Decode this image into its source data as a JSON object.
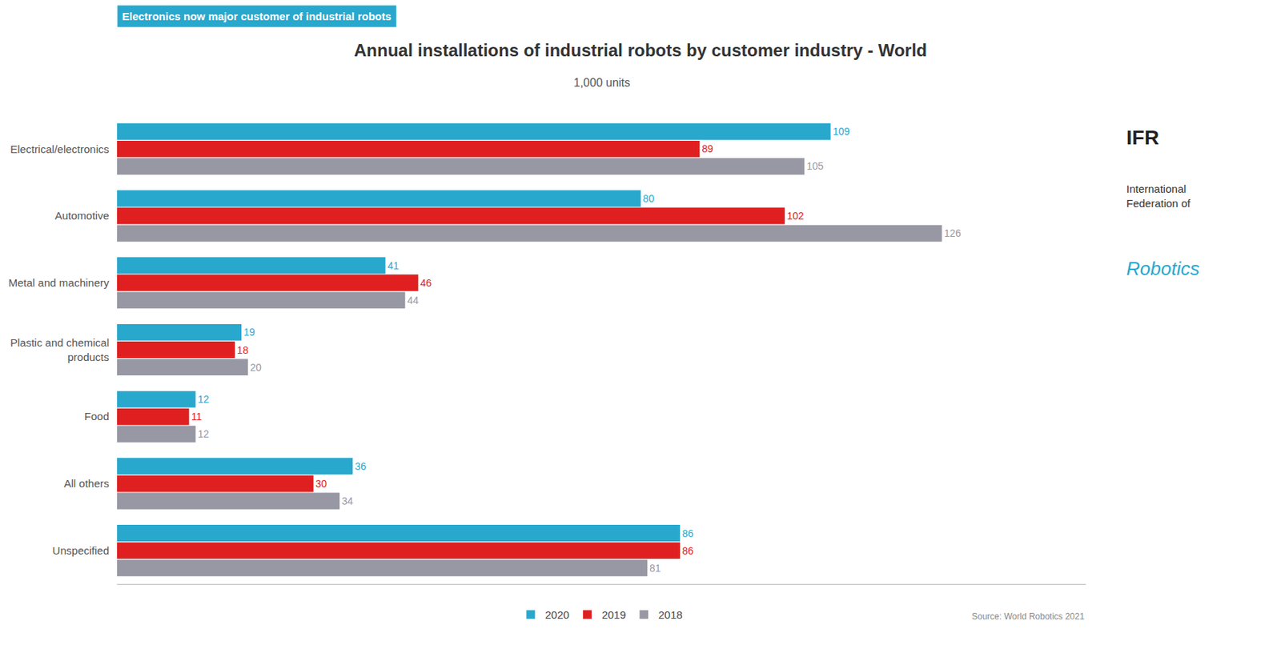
{
  "chart_data": {
    "type": "bar",
    "orientation": "horizontal",
    "title": "Annual installations of industrial robots by customer industry - World",
    "subtitle": "1,000 units",
    "annotations": [
      "Electronics now major customer of industrial robots",
      "Source: World Robotics 2021",
      "IFR",
      "International\nFederation of",
      "Robotics"
    ],
    "categories": [
      "Electrical/electronics",
      "Automotive",
      "Metal and machinery",
      "Plastic and chemical\nproducts",
      "Food",
      "All others",
      "Unspecified"
    ],
    "series": [
      {
        "name": "2020",
        "color": "#29A8CD",
        "values": [
          109,
          80,
          41,
          19,
          12,
          36,
          86
        ]
      },
      {
        "name": "2019",
        "color": "#E02020",
        "values": [
          89,
          102,
          46,
          18,
          11,
          30,
          86
        ]
      },
      {
        "name": "2018",
        "color": "#9898A4",
        "values": [
          105,
          126,
          44,
          20,
          12,
          34,
          81
        ]
      }
    ],
    "xlim": [
      0,
      148
    ],
    "grid": false,
    "legend": "bottom",
    "data_labels": true,
    "tick_labels": "y"
  }
}
